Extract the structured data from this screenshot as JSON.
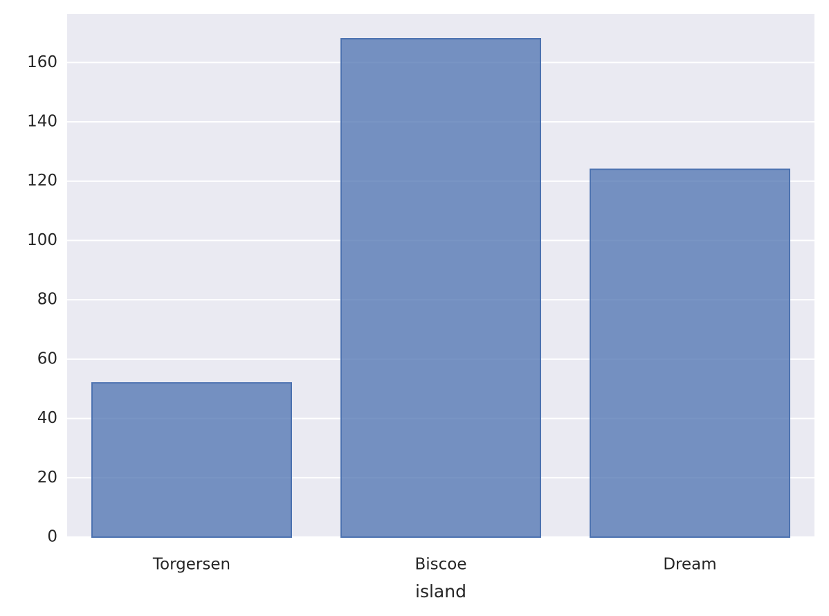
{
  "chart_data": {
    "type": "bar",
    "x_label": "island",
    "categories": [
      "Torgersen",
      "Biscoe",
      "Dream"
    ],
    "values": [
      52,
      168,
      124
    ],
    "color": "#4c72b0",
    "fill_opacity": 0.75,
    "ylim": [
      0,
      176.4
    ],
    "yticks": [
      0,
      20,
      40,
      60,
      80,
      100,
      120,
      140,
      160
    ],
    "grid": true
  }
}
